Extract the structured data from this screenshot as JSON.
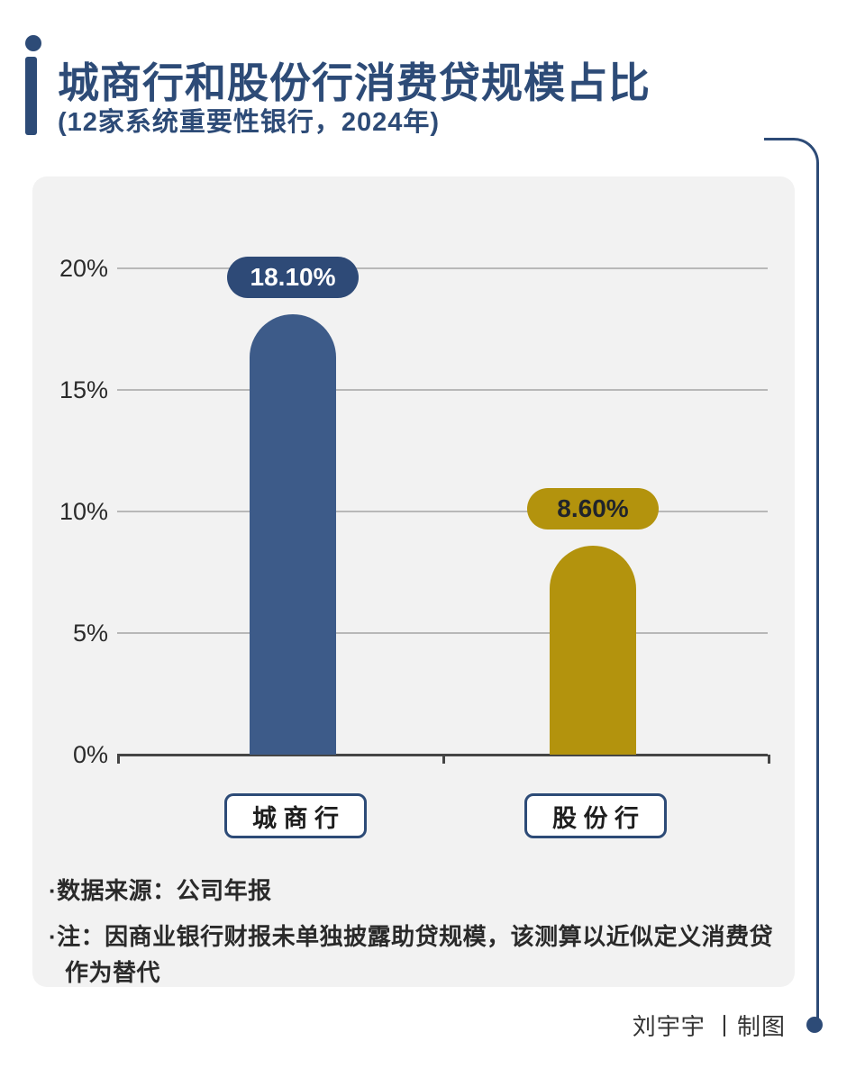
{
  "header": {
    "title": "城商行和股份行消费贷规模占比",
    "subtitle": "(12家系统重要性银行，2024年)"
  },
  "notes": {
    "source": "·数据来源：公司年报",
    "note_line1": "·注：因商业银行财报未单独披露助贷规模，该测算以近似定义消费贷",
    "note_line2": "作为替代"
  },
  "footer": {
    "credit": "刘宇宇 丨制图"
  },
  "colors": {
    "accent": "#2d4b77",
    "panel_bg": "#f2f2f2",
    "grid_line": "#b8b8b8",
    "axis_line": "#454545"
  },
  "chart_data": {
    "type": "bar",
    "title": "城商行和股份行消费贷规模占比 (12家系统重要性银行，2024年)",
    "categories": [
      "城 商 行",
      "股 份 行"
    ],
    "values": [
      18.1,
      8.6
    ],
    "value_labels": [
      "18.10%",
      "8.60%"
    ],
    "bar_colors": [
      "#3d5b89",
      "#b3930d"
    ],
    "pill_colors": [
      "#2e4a77",
      "#b3930d"
    ],
    "pill_text_colors": [
      "#ffffff",
      "#20242b"
    ],
    "y_ticks": [
      "20%",
      "15%",
      "10%",
      "5%",
      "0%"
    ],
    "ylim": [
      0,
      20
    ],
    "grid": true,
    "legend": false
  }
}
